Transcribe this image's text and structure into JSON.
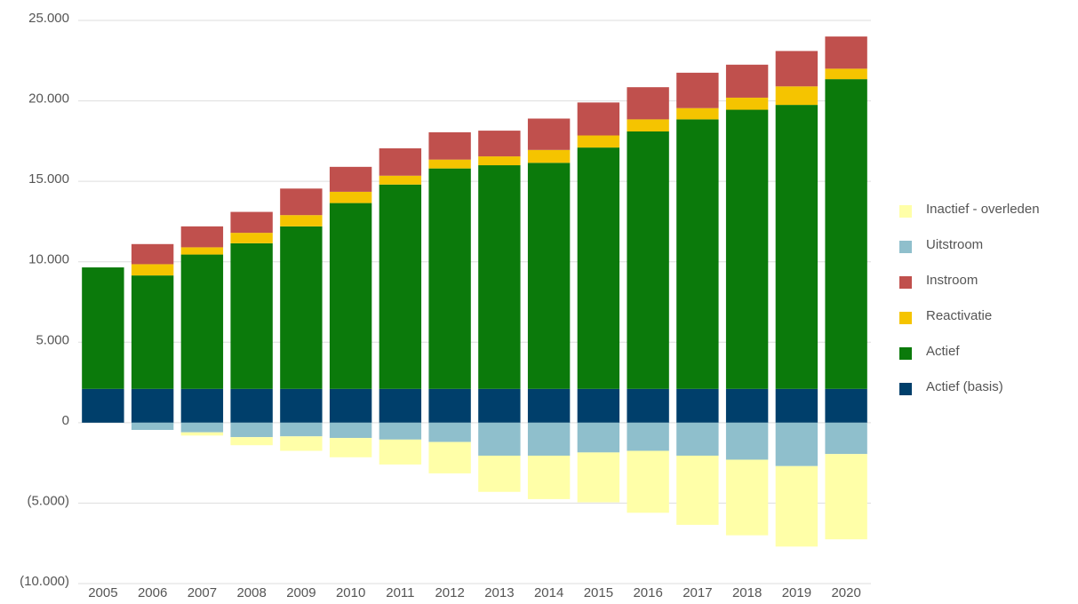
{
  "chart_data": {
    "type": "stacked_bar",
    "categories": [
      "2005",
      "2006",
      "2007",
      "2008",
      "2009",
      "2010",
      "2011",
      "2012",
      "2013",
      "2014",
      "2015",
      "2016",
      "2017",
      "2018",
      "2019",
      "2020"
    ],
    "series": [
      {
        "name": "Inactief - overleden",
        "color": "#ffffa8",
        "values": [
          0,
          0,
          -200,
          -500,
          -900,
          -1200,
          -1550,
          -1950,
          -2250,
          -2700,
          -3100,
          -3850,
          -4300,
          -4700,
          -5000,
          -5300
        ]
      },
      {
        "name": "Uitstroom",
        "color": "#8fbfcc",
        "values": [
          0,
          -450,
          -600,
          -900,
          -850,
          -950,
          -1050,
          -1200,
          -2050,
          -2050,
          -1850,
          -1750,
          -2050,
          -2300,
          -2700,
          -1950
        ]
      },
      {
        "name": "Instroom",
        "color": "#c0504d",
        "values": [
          0,
          1250,
          1300,
          1300,
          1650,
          1550,
          1700,
          1700,
          1600,
          1950,
          2050,
          2000,
          2200,
          2050,
          2200,
          2000
        ]
      },
      {
        "name": "Reactivatie",
        "color": "#f5c400",
        "values": [
          0,
          700,
          450,
          650,
          700,
          700,
          550,
          550,
          550,
          800,
          750,
          750,
          700,
          750,
          1150,
          650
        ]
      },
      {
        "name": "Actief",
        "color": "#0b7a0b",
        "values": [
          7550,
          7050,
          8350,
          9050,
          10100,
          11550,
          12700,
          13700,
          13900,
          14050,
          15000,
          16000,
          16750,
          17350,
          17650,
          19250
        ]
      },
      {
        "name": "Actief (basis)",
        "color": "#003f6b",
        "values": [
          2100,
          2100,
          2100,
          2100,
          2100,
          2100,
          2100,
          2100,
          2100,
          2100,
          2100,
          2100,
          2100,
          2100,
          2100,
          2100
        ]
      }
    ],
    "ylim": [
      -10000,
      25000
    ],
    "yticks": [
      {
        "value": -10000,
        "label": "(10.000)"
      },
      {
        "value": -5000,
        "label": "(5.000)"
      },
      0,
      {
        "value": 5000,
        "label": "5.000"
      },
      {
        "value": 10000,
        "label": "10.000"
      },
      {
        "value": 15000,
        "label": "15.000"
      },
      {
        "value": 20000,
        "label": "20.000"
      },
      {
        "value": 25000,
        "label": "25.000"
      }
    ],
    "grid": true,
    "legend": "right"
  }
}
